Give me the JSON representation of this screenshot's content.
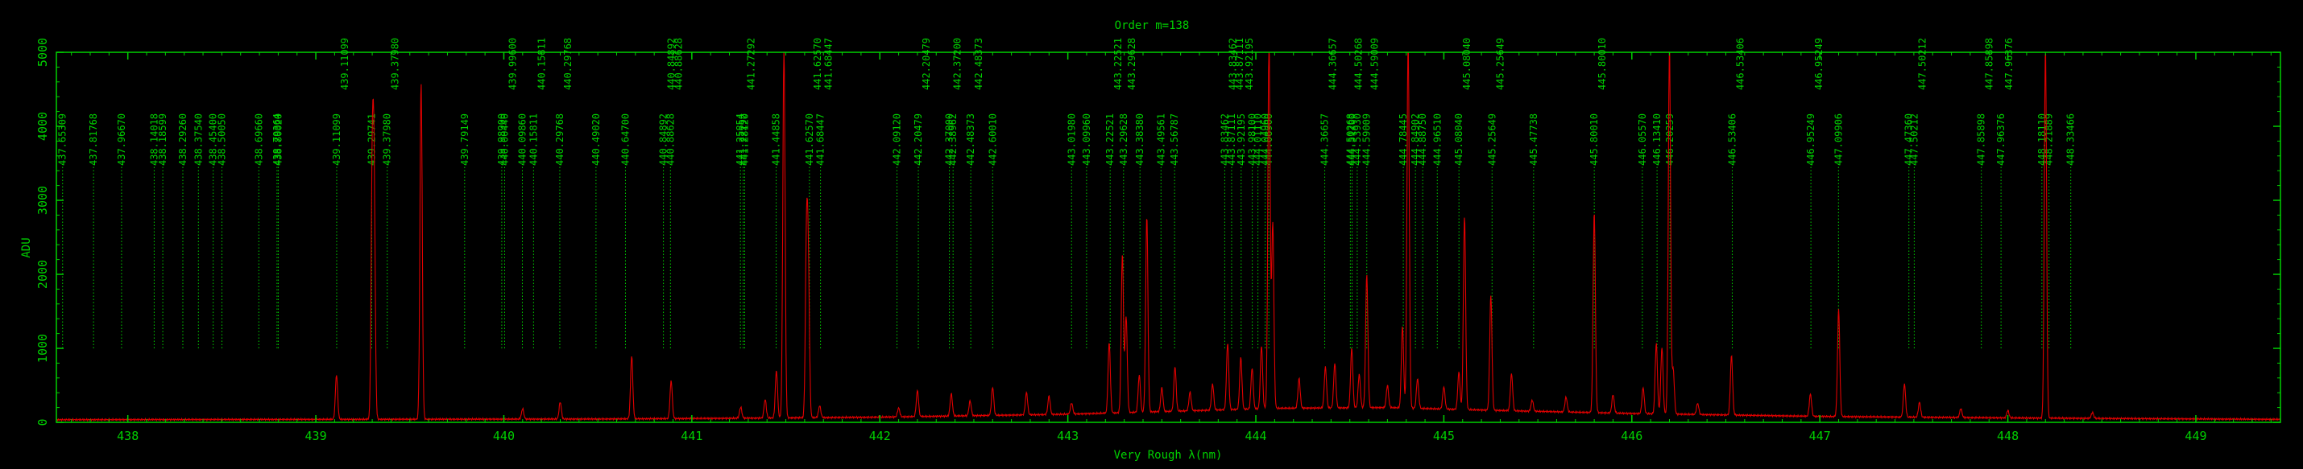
{
  "chart_data": {
    "type": "line",
    "title": "Order m=138",
    "xlabel": "Very Rough λ(nm)",
    "ylabel": "ADU",
    "xlim": [
      437.62,
      449.45
    ],
    "ylim": [
      0,
      5000
    ],
    "x_ticks": [
      438,
      439,
      440,
      441,
      442,
      443,
      444,
      445,
      446,
      447,
      448,
      449
    ],
    "y_ticks": [
      0,
      1000,
      2000,
      3000,
      4000,
      5000
    ],
    "colors": {
      "background": "#000000",
      "axes": "#00d000",
      "spectrum": "#e00000",
      "marker": "#00d000"
    },
    "grid": false,
    "legend": "none",
    "marker_lines": {
      "y_range": [
        1000,
        3500
      ],
      "wavelengths": [
        437.65309,
        437.81768,
        437.9667,
        438.14018,
        438.18599,
        438.2926,
        438.3754,
        438.454,
        438.5005,
        438.6966,
        438.79364,
        438.8002,
        439.11099,
        439.29741,
        439.3798,
        439.79149,
        439.989,
        440.0044,
        440.0986,
        440.15811,
        440.29768,
        440.4902,
        440.647,
        440.84892,
        440.88628,
        441.25854,
        441.27292,
        441.2812,
        441.44858,
        441.6257,
        441.68447,
        442.0912,
        442.20479,
        442.37,
        442.38962,
        442.48373,
        442.6001,
        443.0198,
        443.0996,
        443.22521,
        443.29628,
        443.3838,
        443.49561,
        443.56787,
        443.83462,
        443.87111,
        443.92195,
        443.981,
        444.0111,
        444.0496,
        444.069,
        444.36657,
        444.50268,
        444.512,
        444.5393,
        444.59009,
        444.78445,
        444.84902,
        444.8875,
        444.9651,
        445.0804,
        445.25649,
        445.47738,
        445.8001,
        446.0557,
        446.1341,
        446.20259,
        446.53406,
        446.95249,
        447.09906,
        447.4736,
        447.50212,
        447.85898,
        447.96376,
        448.1811,
        448.21889,
        448.33466
      ],
      "labels": [
        {
          "x": 437.65309,
          "text": "437.65309"
        },
        {
          "x": 437.81768,
          "text": "437.81768"
        },
        {
          "x": 437.9667,
          "text": "437.96670"
        },
        {
          "x": 438.14018,
          "text": "438.14018"
        },
        {
          "x": 438.18599,
          "text": "438.18599"
        },
        {
          "x": 438.2926,
          "text": "438.29260"
        },
        {
          "x": 438.3754,
          "text": "438.37540"
        },
        {
          "x": 438.454,
          "text": "438.45400"
        },
        {
          "x": 438.5005,
          "text": "438.50050"
        },
        {
          "x": 438.6966,
          "text": "438.69660"
        },
        {
          "x": 438.79364,
          "text": "438.79364"
        },
        {
          "x": 438.8002,
          "text": "438.80020"
        },
        {
          "x": 439.11099,
          "text": "439.11099"
        },
        {
          "x": 439.11099,
          "text": "439.11099",
          "row": 2
        },
        {
          "x": 439.29741,
          "text": "439.29741"
        },
        {
          "x": 439.3798,
          "text": "439.37980"
        },
        {
          "x": 439.3798,
          "text": "439.37980",
          "row": 2
        },
        {
          "x": 439.79149,
          "text": "439.79149"
        },
        {
          "x": 439.989,
          "text": "439.98900"
        },
        {
          "x": 440.0044,
          "text": "440.00440"
        },
        {
          "x": 440.0044,
          "text": "439.99600",
          "row": 2
        },
        {
          "x": 440.0986,
          "text": "440.09860"
        },
        {
          "x": 440.15811,
          "text": "440.15811"
        },
        {
          "x": 440.15811,
          "text": "440.15811",
          "row": 2
        },
        {
          "x": 440.29768,
          "text": "440.29768"
        },
        {
          "x": 440.29768,
          "text": "440.29768",
          "row": 2
        },
        {
          "x": 440.4902,
          "text": "440.49020"
        },
        {
          "x": 440.647,
          "text": "440.64700"
        },
        {
          "x": 440.84892,
          "text": "440.84892"
        },
        {
          "x": 440.84892,
          "text": "440.84892",
          "row": 2
        },
        {
          "x": 440.88628,
          "text": "440.88628"
        },
        {
          "x": 440.88628,
          "text": "440.88628",
          "row": 2
        },
        {
          "x": 441.25854,
          "text": "441.25854"
        },
        {
          "x": 441.27292,
          "text": "441.27292"
        },
        {
          "x": 441.27292,
          "text": "441.27292",
          "row": 2
        },
        {
          "x": 441.2812,
          "text": "441.28120"
        },
        {
          "x": 441.44858,
          "text": "441.44858"
        },
        {
          "x": 441.6257,
          "text": "441.62570"
        },
        {
          "x": 441.6257,
          "text": "441.62570",
          "row": 2
        },
        {
          "x": 441.68447,
          "text": "441.68447"
        },
        {
          "x": 441.68447,
          "text": "441.68447",
          "row": 2
        },
        {
          "x": 442.0912,
          "text": "442.09120"
        },
        {
          "x": 442.20479,
          "text": "442.20479"
        },
        {
          "x": 442.20479,
          "text": "442.20479",
          "row": 2
        },
        {
          "x": 442.37,
          "text": "442.37000"
        },
        {
          "x": 442.38962,
          "text": "442.38962"
        },
        {
          "x": 442.37,
          "text": "442.37200",
          "row": 2
        },
        {
          "x": 442.48373,
          "text": "442.48373"
        },
        {
          "x": 442.48373,
          "text": "442.48373",
          "row": 2
        },
        {
          "x": 442.6001,
          "text": "442.60010"
        },
        {
          "x": 443.0198,
          "text": "443.01980"
        },
        {
          "x": 443.0996,
          "text": "443.09960"
        },
        {
          "x": 443.22521,
          "text": "443.22521"
        },
        {
          "x": 443.22521,
          "text": "443.22521",
          "row": 2
        },
        {
          "x": 443.29628,
          "text": "443.29628"
        },
        {
          "x": 443.29628,
          "text": "443.29628",
          "row": 2
        },
        {
          "x": 443.3838,
          "text": "443.38380"
        },
        {
          "x": 443.49561,
          "text": "443.49561"
        },
        {
          "x": 443.56787,
          "text": "443.56787"
        },
        {
          "x": 443.83462,
          "text": "443.83462"
        },
        {
          "x": 443.87111,
          "text": "443.87111"
        },
        {
          "x": 443.92195,
          "text": "443.92195"
        },
        {
          "x": 443.981,
          "text": "443.98100"
        },
        {
          "x": 444.0111,
          "text": "444.01110"
        },
        {
          "x": 444.0496,
          "text": "444.04960"
        },
        {
          "x": 444.069,
          "text": "444.06900"
        },
        {
          "x": 443.83462,
          "text": "443.83462",
          "row": 2
        },
        {
          "x": 443.87111,
          "text": "443.87111",
          "row": 2
        },
        {
          "x": 443.92195,
          "text": "443.92195",
          "row": 2
        },
        {
          "x": 444.36657,
          "text": "444.36657"
        },
        {
          "x": 444.36657,
          "text": "444.36657",
          "row": 2
        },
        {
          "x": 444.50268,
          "text": "444.50268"
        },
        {
          "x": 444.512,
          "text": "444.51200"
        },
        {
          "x": 444.5393,
          "text": "444.53930"
        },
        {
          "x": 444.50268,
          "text": "444.50268",
          "row": 2
        },
        {
          "x": 444.59009,
          "text": "444.59009"
        },
        {
          "x": 444.59009,
          "text": "444.59009",
          "row": 2
        },
        {
          "x": 444.78445,
          "text": "444.78445"
        },
        {
          "x": 444.84902,
          "text": "444.84902"
        },
        {
          "x": 444.8875,
          "text": "444.88750"
        },
        {
          "x": 444.9651,
          "text": "444.96510"
        },
        {
          "x": 445.0804,
          "text": "445.08040"
        },
        {
          "x": 445.0804,
          "text": "445.08040",
          "row": 2
        },
        {
          "x": 445.25649,
          "text": "445.25649"
        },
        {
          "x": 445.25649,
          "text": "445.25649",
          "row": 2
        },
        {
          "x": 445.47738,
          "text": "445.47738"
        },
        {
          "x": 445.8001,
          "text": "445.80010"
        },
        {
          "x": 445.8001,
          "text": "445.80010",
          "row": 2
        },
        {
          "x": 446.0557,
          "text": "446.05570"
        },
        {
          "x": 446.1341,
          "text": "446.13410"
        },
        {
          "x": 446.20259,
          "text": "446.20259"
        },
        {
          "x": 446.53406,
          "text": "446.53406"
        },
        {
          "x": 446.53406,
          "text": "446.53406",
          "row": 2
        },
        {
          "x": 446.95249,
          "text": "446.95249"
        },
        {
          "x": 446.95249,
          "text": "446.95249",
          "row": 2
        },
        {
          "x": 447.09906,
          "text": "447.09906"
        },
        {
          "x": 447.4736,
          "text": "447.47360"
        },
        {
          "x": 447.50212,
          "text": "447.50212"
        },
        {
          "x": 447.50212,
          "text": "447.50212",
          "row": 2
        },
        {
          "x": 447.85898,
          "text": "447.85898"
        },
        {
          "x": 447.85898,
          "text": "447.85898",
          "row": 2
        },
        {
          "x": 447.96376,
          "text": "447.96376"
        },
        {
          "x": 447.96376,
          "text": "447.96376",
          "row": 2
        },
        {
          "x": 448.1811,
          "text": "448.18110"
        },
        {
          "x": 448.21889,
          "text": "448.21889"
        },
        {
          "x": 448.33466,
          "text": "448.33466"
        }
      ]
    },
    "series": [
      {
        "values": [],
        "continuum": [
          [
            437.62,
            35
          ],
          [
            439.0,
            40
          ],
          [
            440.5,
            45
          ],
          [
            441.2,
            55
          ],
          [
            442.0,
            70
          ],
          [
            443.0,
            110
          ],
          [
            443.7,
            160
          ],
          [
            444.1,
            190
          ],
          [
            444.7,
            200
          ],
          [
            445.3,
            160
          ],
          [
            446.0,
            120
          ],
          [
            447.0,
            80
          ],
          [
            448.0,
            60
          ],
          [
            449.45,
            40
          ]
        ],
        "peaks": [
          {
            "x": 439.11,
            "y": 600
          },
          {
            "x": 439.3,
            "y": 3150
          },
          {
            "x": 439.31,
            "y": 3000
          },
          {
            "x": 439.56,
            "y": 4560
          },
          {
            "x": 440.1,
            "y": 140
          },
          {
            "x": 440.3,
            "y": 230
          },
          {
            "x": 440.68,
            "y": 850
          },
          {
            "x": 440.89,
            "y": 510
          },
          {
            "x": 441.26,
            "y": 150
          },
          {
            "x": 441.39,
            "y": 250
          },
          {
            "x": 441.45,
            "y": 640
          },
          {
            "x": 441.49,
            "y": 5000
          },
          {
            "x": 441.61,
            "y": 2350
          },
          {
            "x": 441.62,
            "y": 1800
          },
          {
            "x": 441.68,
            "y": 160
          },
          {
            "x": 442.1,
            "y": 120
          },
          {
            "x": 442.2,
            "y": 350
          },
          {
            "x": 442.38,
            "y": 300
          },
          {
            "x": 442.48,
            "y": 200
          },
          {
            "x": 442.6,
            "y": 380
          },
          {
            "x": 442.78,
            "y": 300
          },
          {
            "x": 442.9,
            "y": 250
          },
          {
            "x": 443.02,
            "y": 150
          },
          {
            "x": 443.22,
            "y": 950
          },
          {
            "x": 443.29,
            "y": 2150
          },
          {
            "x": 443.31,
            "y": 1300
          },
          {
            "x": 443.38,
            "y": 500
          },
          {
            "x": 443.42,
            "y": 2650
          },
          {
            "x": 443.5,
            "y": 320
          },
          {
            "x": 443.57,
            "y": 600
          },
          {
            "x": 443.65,
            "y": 250
          },
          {
            "x": 443.77,
            "y": 350
          },
          {
            "x": 443.85,
            "y": 900
          },
          {
            "x": 443.92,
            "y": 700
          },
          {
            "x": 443.98,
            "y": 550
          },
          {
            "x": 444.03,
            "y": 850
          },
          {
            "x": 444.07,
            "y": 5000
          },
          {
            "x": 444.09,
            "y": 2500
          },
          {
            "x": 444.23,
            "y": 400
          },
          {
            "x": 444.37,
            "y": 550
          },
          {
            "x": 444.42,
            "y": 600
          },
          {
            "x": 444.51,
            "y": 800
          },
          {
            "x": 444.55,
            "y": 450
          },
          {
            "x": 444.59,
            "y": 1800
          },
          {
            "x": 444.7,
            "y": 300
          },
          {
            "x": 444.78,
            "y": 1100
          },
          {
            "x": 444.81,
            "y": 5000
          },
          {
            "x": 444.86,
            "y": 400
          },
          {
            "x": 445.0,
            "y": 300
          },
          {
            "x": 445.08,
            "y": 500
          },
          {
            "x": 445.11,
            "y": 2600
          },
          {
            "x": 445.25,
            "y": 1550
          },
          {
            "x": 445.36,
            "y": 500
          },
          {
            "x": 445.47,
            "y": 150
          },
          {
            "x": 445.65,
            "y": 200
          },
          {
            "x": 445.8,
            "y": 2700
          },
          {
            "x": 445.9,
            "y": 250
          },
          {
            "x": 446.06,
            "y": 350
          },
          {
            "x": 446.13,
            "y": 950
          },
          {
            "x": 446.16,
            "y": 900
          },
          {
            "x": 446.2,
            "y": 5000
          },
          {
            "x": 446.22,
            "y": 600
          },
          {
            "x": 446.35,
            "y": 150
          },
          {
            "x": 446.53,
            "y": 800
          },
          {
            "x": 446.95,
            "y": 300
          },
          {
            "x": 447.1,
            "y": 1450
          },
          {
            "x": 447.45,
            "y": 450
          },
          {
            "x": 447.53,
            "y": 200
          },
          {
            "x": 447.75,
            "y": 120
          },
          {
            "x": 448.0,
            "y": 100
          },
          {
            "x": 448.2,
            "y": 5000
          },
          {
            "x": 448.45,
            "y": 80
          }
        ]
      }
    ]
  }
}
